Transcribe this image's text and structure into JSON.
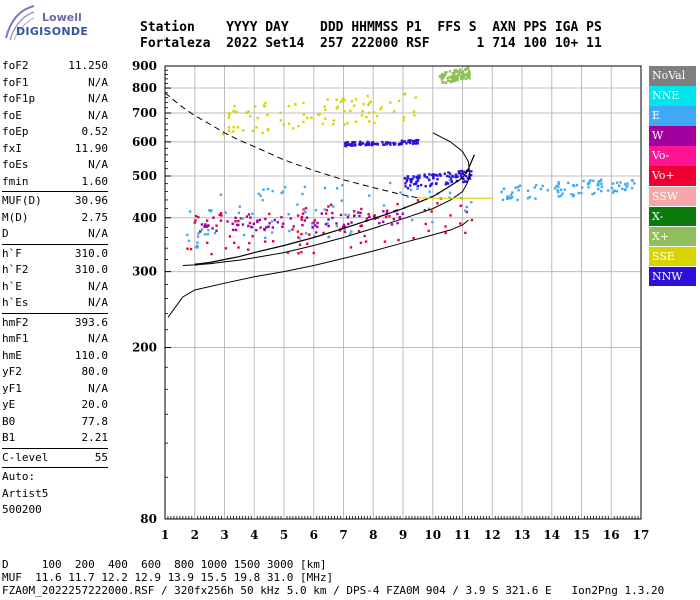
{
  "logo": {
    "line1": "Lowell",
    "line2": "DIGISONDE"
  },
  "header": {
    "line1": "Station    YYYY DAY    DDD HHMMSS P1  FFS S  AXN PPS IGA PS",
    "line2": "Fortaleza  2022 Set14  257 222000 RSF      1 714 100 10+ 11"
  },
  "params_groups": [
    [
      {
        "k": "foF2",
        "v": "11.250"
      },
      {
        "k": "foF1",
        "v": "N/A"
      },
      {
        "k": "foF1p",
        "v": "N/A"
      },
      {
        "k": "foE",
        "v": "N/A"
      },
      {
        "k": "foEp",
        "v": "0.52"
      },
      {
        "k": "fxI",
        "v": "11.90"
      },
      {
        "k": "foEs",
        "v": "N/A"
      },
      {
        "k": "fmin",
        "v": "1.60"
      }
    ],
    [
      {
        "k": "MUF(D)",
        "v": "30.96"
      },
      {
        "k": "M(D)",
        "v": "2.75"
      },
      {
        "k": "D",
        "v": "N/A"
      }
    ],
    [
      {
        "k": "h`F",
        "v": "310.0"
      },
      {
        "k": "h`F2",
        "v": "310.0"
      },
      {
        "k": "h`E",
        "v": "N/A"
      },
      {
        "k": "h`Es",
        "v": "N/A"
      }
    ],
    [
      {
        "k": "hmF2",
        "v": "393.6"
      },
      {
        "k": "hmF1",
        "v": "N/A"
      },
      {
        "k": "hmE",
        "v": "110.0"
      },
      {
        "k": "yF2",
        "v": "80.0"
      },
      {
        "k": "yF1",
        "v": "N/A"
      },
      {
        "k": "yE",
        "v": "20.0"
      },
      {
        "k": "B0",
        "v": "77.8"
      },
      {
        "k": "B1",
        "v": "2.21"
      }
    ],
    [
      {
        "k": "C-level",
        "v": "55"
      }
    ]
  ],
  "auto": {
    "line1": "Auto:",
    "line2": "Artist5",
    "line3": "500200"
  },
  "legend": [
    {
      "label": "NoVal",
      "color": "#7f7f7f"
    },
    {
      "label": "NNE",
      "color": "#00e5ee"
    },
    {
      "label": "E",
      "color": "#3fa9f5"
    },
    {
      "label": "W",
      "color": "#a1009f"
    },
    {
      "label": "Vo-",
      "color": "#ff1493"
    },
    {
      "label": "Vo+",
      "color": "#ee0030"
    },
    {
      "label": "SSW",
      "color": "#f5a6a6"
    },
    {
      "label": "X-",
      "color": "#0a7a0a"
    },
    {
      "label": "X+",
      "color": "#8fbf5a"
    },
    {
      "label": "SSE",
      "color": "#d9d400"
    },
    {
      "label": "NNW",
      "color": "#2a10d8"
    }
  ],
  "chart_data": {
    "type": "scatter",
    "xlabel": "",
    "ylabel": "",
    "xlim": [
      1,
      17
    ],
    "ylim": [
      80,
      900
    ],
    "y_scale": "log",
    "xticks": [
      1,
      2,
      3,
      4,
      5,
      6,
      7,
      8,
      9,
      10,
      11,
      12,
      13,
      14,
      15,
      16,
      17
    ],
    "yticks": [
      80,
      200,
      300,
      400,
      500,
      600,
      700,
      800,
      900
    ],
    "grid": true,
    "legend_placement": "right",
    "profile_line": {
      "x": [
        1.6,
        2,
        2.5,
        3,
        3.5,
        4,
        5,
        6,
        7,
        8,
        9,
        10,
        10.6,
        11.0,
        11.15,
        11.25,
        11.2,
        11.0,
        10.6,
        10.2,
        10.0
      ],
      "y": [
        310,
        311,
        313,
        316,
        319,
        323,
        332,
        345,
        360,
        378,
        398,
        420,
        440,
        460,
        480,
        500,
        540,
        570,
        600,
        620,
        630
      ]
    },
    "echo_line": {
      "x": [
        2.0,
        2.5,
        3.0,
        3.5,
        4,
        5,
        6,
        7,
        8,
        9,
        10,
        10.5,
        11.0,
        11.2,
        11.4
      ],
      "y": [
        312,
        315,
        320,
        325,
        332,
        345,
        360,
        378,
        398,
        420,
        448,
        470,
        495,
        520,
        560
      ]
    },
    "sample_lower": {
      "x": [
        1.1,
        1.6,
        2.0,
        3,
        4,
        5,
        6,
        7,
        8,
        9,
        10,
        10.6,
        11.0,
        11.2
      ],
      "y": [
        235,
        262,
        272,
        282,
        292,
        300,
        310,
        322,
        335,
        350,
        365,
        375,
        385,
        395
      ]
    },
    "dashed_line": {
      "x": [
        1.0,
        1.5,
        2.0,
        2.5,
        3.0,
        3.5,
        4,
        5,
        6,
        7,
        8,
        9,
        9.5
      ],
      "y": [
        780,
        730,
        690,
        660,
        630,
        605,
        585,
        545,
        515,
        490,
        470,
        452,
        445
      ]
    },
    "mufs_line": {
      "x": [
        9.5,
        10,
        11,
        12
      ],
      "y": [
        445,
        444,
        444,
        444
      ]
    },
    "echo_clusters": [
      {
        "name": "Vo+",
        "color": "#ee0030",
        "x": [
          1.7,
          11.3
        ],
        "y": [
          310,
          460
        ]
      },
      {
        "name": "E",
        "color": "#3fa9f5",
        "x": [
          1.7,
          11.4
        ],
        "y": [
          330,
          520
        ]
      },
      {
        "name": "W",
        "color": "#a1009f",
        "x": [
          2.0,
          9.0
        ],
        "y": [
          370,
          420
        ]
      },
      {
        "name": "SSE",
        "color": "#d9d400",
        "x": [
          2.8,
          9.5
        ],
        "y": [
          620,
          790
        ]
      },
      {
        "name": "NNW",
        "color": "#2a10d8",
        "x": [
          9.0,
          11.3
        ],
        "y": [
          470,
          520
        ]
      },
      {
        "name": "E",
        "color": "#3fa9f5",
        "x": [
          12.2,
          16.8
        ],
        "y": [
          440,
          500
        ]
      },
      {
        "name": "NNW",
        "color": "#2a10d8",
        "x": [
          7.0,
          9.5
        ],
        "y": [
          590,
          610
        ]
      },
      {
        "name": "X+",
        "color": "#8fbf5a",
        "x": [
          10.2,
          11.2
        ],
        "y": [
          820,
          900
        ]
      }
    ]
  },
  "footer": {
    "line1": "D     100  200  400  600  800 1000 1500 3000 [km]",
    "line2": "MUF  11.6 11.7 12.2 12.9 13.9 15.5 19.8 31.0 [MHz]",
    "line3": "FZA0M_2022257222000.RSF / 320fx256h 50 kHz 5.0 km / DPS-4 FZA0M 904 / 3.9 S 321.6 E   Ion2Png 1.3.20"
  }
}
